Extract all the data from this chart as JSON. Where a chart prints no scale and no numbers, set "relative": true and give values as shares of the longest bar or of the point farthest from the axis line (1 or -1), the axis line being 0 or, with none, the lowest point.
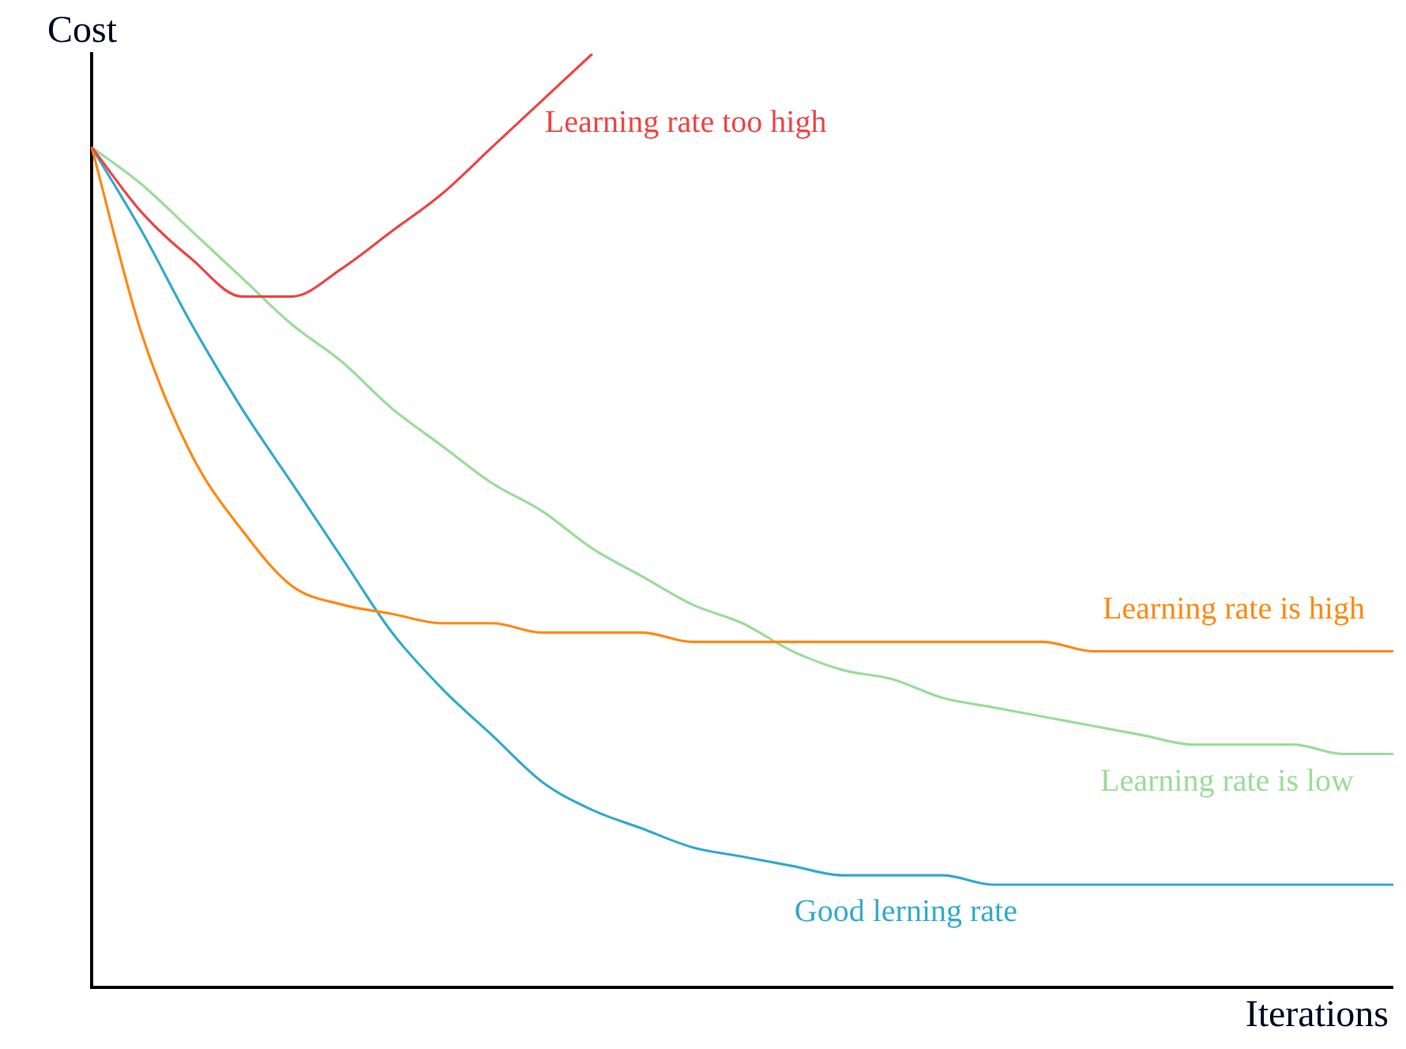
{
  "chart_data": {
    "type": "line",
    "relative": true,
    "xlabel": "Iterations",
    "ylabel": "Cost",
    "legend": false,
    "grid": false,
    "marker": "none",
    "line_style": "solid",
    "categories": [
      null,
      null,
      null,
      null,
      null,
      null,
      null,
      null,
      null,
      null,
      null,
      null,
      null,
      null,
      null,
      null,
      null,
      null,
      null,
      null,
      null,
      null,
      null,
      null,
      null,
      null,
      null
    ],
    "series": [
      {
        "name": "Learning rate too high",
        "color": "#ee4444",
        "values": [
          0.9,
          0.83,
          0.78,
          0.74,
          0.74,
          0.77,
          0.81,
          0.85,
          0.9,
          0.95,
          1.0,
          null,
          null,
          null,
          null,
          null,
          null,
          null,
          null,
          null,
          null,
          null,
          null,
          null,
          null,
          null,
          null
        ]
      },
      {
        "name": "Learning rate is high",
        "color": "#ff8811",
        "values": [
          0.9,
          0.7,
          0.57,
          0.49,
          0.43,
          0.41,
          0.4,
          0.39,
          0.39,
          0.38,
          0.38,
          0.38,
          0.37,
          0.37,
          0.37,
          0.37,
          0.37,
          0.37,
          0.37,
          0.37,
          0.36,
          0.36,
          0.36,
          0.36,
          0.36,
          0.36,
          0.36
        ]
      },
      {
        "name": "Learning rate is low",
        "color": "#99dd99",
        "values": [
          0.9,
          0.86,
          0.81,
          0.76,
          0.71,
          0.67,
          0.62,
          0.58,
          0.54,
          0.51,
          0.47,
          0.44,
          0.41,
          0.39,
          0.36,
          0.34,
          0.33,
          0.31,
          0.3,
          0.29,
          0.28,
          0.27,
          0.26,
          0.26,
          0.26,
          0.25,
          0.25
        ]
      },
      {
        "name": "Good lerning rate",
        "color": "#33aacc",
        "values": [
          0.9,
          0.81,
          0.71,
          0.62,
          0.54,
          0.46,
          0.38,
          0.32,
          0.27,
          0.22,
          0.19,
          0.17,
          0.15,
          0.14,
          0.13,
          0.12,
          0.12,
          0.12,
          0.11,
          0.11,
          0.11,
          0.11,
          0.11,
          0.11,
          0.11,
          0.11,
          0.11
        ]
      }
    ]
  }
}
